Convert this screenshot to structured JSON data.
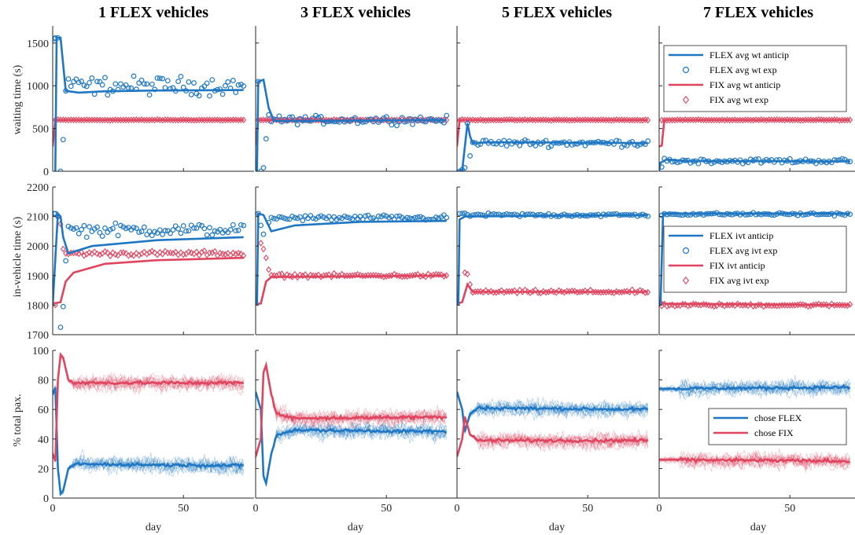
{
  "colors": {
    "flex": "#1f77c4",
    "fix": "#e0445f",
    "axis": "#262626"
  },
  "chart_data": {
    "type": "line",
    "layout": "3x4 grid of panels",
    "titles": [
      "1 FLEX vehicles",
      "3 FLEX vehicles",
      "5 FLEX vehicles",
      "7 FLEX vehicles"
    ],
    "xlabel": "day",
    "xlim": [
      0,
      75
    ],
    "xticks": [
      0,
      50
    ],
    "rows": [
      {
        "ylabel": "waiting time (s)",
        "ylim": [
          0,
          1700
        ],
        "yticks": [
          0,
          500,
          1000,
          1500
        ],
        "legend": {
          "panel": 3,
          "placement": "top-right",
          "entries": [
            {
              "label": "FLEX avg wt anticip",
              "series": "flex",
              "style": "line"
            },
            {
              "label": "FLEX avg wt exp",
              "series": "flex",
              "style": "circle"
            },
            {
              "label": "FIX avg wt anticip",
              "series": "fix",
              "style": "line"
            },
            {
              "label": "FIX avg wt exp",
              "series": "fix",
              "style": "diamond"
            }
          ]
        },
        "panels": [
          {
            "flex_anticip": [
              [
                1,
                0
              ],
              [
                1.5,
                1560
              ],
              [
                3,
                1560
              ],
              [
                5,
                940
              ],
              [
                10,
                920
              ],
              [
                20,
                935
              ],
              [
                40,
                945
              ],
              [
                73,
                950
              ]
            ],
            "flex_exp": {
              "early": [
                [
                  0.5,
                  1550
                ],
                [
                  1,
                  1560
                ],
                [
                  2,
                  1560
                ],
                [
                  3,
                  0
                ],
                [
                  4,
                  370
                ],
                [
                  5,
                  940
                ],
                [
                  6,
                  1080
                ]
              ],
              "level": 1000,
              "spread": 90
            },
            "fix_anticip": [
              [
                0,
                290
              ],
              [
                1,
                600
              ],
              [
                73,
                600
              ]
            ],
            "fix_exp": {
              "early": [],
              "level": 600,
              "spread": 4
            }
          },
          {
            "flex_anticip": [
              [
                0.5,
                0
              ],
              [
                1,
                1050
              ],
              [
                3,
                1070
              ],
              [
                5,
                740
              ],
              [
                7,
                590
              ],
              [
                20,
                590
              ],
              [
                73,
                600
              ]
            ],
            "flex_exp": {
              "early": [
                [
                  1,
                  1050
                ],
                [
                  2,
                  0
                ],
                [
                  3,
                  40
                ],
                [
                  4,
                  380
                ],
                [
                  5,
                  660
                ]
              ],
              "level": 600,
              "spread": 40
            },
            "fix_anticip": [
              [
                0,
                300
              ],
              [
                1,
                600
              ],
              [
                73,
                600
              ]
            ],
            "fix_exp": {
              "early": [],
              "level": 600,
              "spread": 4
            }
          },
          {
            "flex_anticip": [
              [
                0.5,
                0
              ],
              [
                2,
                10
              ],
              [
                4,
                560
              ],
              [
                5,
                410
              ],
              [
                6,
                330
              ],
              [
                15,
                340
              ],
              [
                73,
                330
              ]
            ],
            "flex_exp": {
              "early": [
                [
                  1,
                  0
                ],
                [
                  2,
                  20
                ],
                [
                  3,
                  40
                ],
                [
                  4,
                  560
                ],
                [
                  5,
                  180
                ]
              ],
              "level": 330,
              "spread": 35
            },
            "fix_anticip": [
              [
                0,
                290
              ],
              [
                1,
                600
              ],
              [
                73,
                600
              ]
            ],
            "fix_exp": {
              "early": [],
              "level": 600,
              "spread": 4
            }
          },
          {
            "flex_anticip": [
              [
                0,
                0
              ],
              [
                0.5,
                100
              ],
              [
                3,
                140
              ],
              [
                10,
                120
              ],
              [
                73,
                115
              ]
            ],
            "flex_exp": {
              "early": [
                [
                  1,
                  50
                ],
                [
                  2,
                  150
                ]
              ],
              "level": 120,
              "spread": 25
            },
            "fix_anticip": [
              [
                0,
                290
              ],
              [
                1,
                300
              ],
              [
                2,
                600
              ],
              [
                73,
                600
              ]
            ],
            "fix_exp": {
              "early": [],
              "level": 600,
              "spread": 4
            }
          }
        ]
      },
      {
        "ylabel": "in-vehicle time (s)",
        "ylim": [
          1700,
          2200
        ],
        "yticks": [
          1700,
          1800,
          1900,
          2000,
          2100,
          2200
        ],
        "legend": {
          "panel": 3,
          "placement": "middle-right",
          "entries": [
            {
              "label": "FLEX ivt anticip",
              "series": "flex",
              "style": "line"
            },
            {
              "label": "FLEX avg ivt exp",
              "series": "flex",
              "style": "circle"
            },
            {
              "label": "FIX ivt anticip",
              "series": "fix",
              "style": "line"
            },
            {
              "label": "FIX avg ivt exp",
              "series": "fix",
              "style": "diamond"
            }
          ]
        },
        "panels": [
          {
            "flex_anticip": [
              [
                0,
                1800
              ],
              [
                2,
                2110
              ],
              [
                3,
                2100
              ],
              [
                4,
                2030
              ],
              [
                6,
                1975
              ],
              [
                15,
                2000
              ],
              [
                40,
                2020
              ],
              [
                73,
                2030
              ]
            ],
            "flex_exp": {
              "early": [
                [
                  0.5,
                  2110
                ],
                [
                  1,
                  2110
                ],
                [
                  2,
                  2100
                ],
                [
                  3,
                  1725
                ],
                [
                  4,
                  1795
                ],
                [
                  5,
                  1950
                ]
              ],
              "level": 2055,
              "spread": 18
            },
            "fix_anticip": [
              [
                0,
                1805
              ],
              [
                3,
                1810
              ],
              [
                5,
                1880
              ],
              [
                8,
                1910
              ],
              [
                20,
                1940
              ],
              [
                40,
                1952
              ],
              [
                73,
                1960
              ]
            ],
            "fix_exp": {
              "early": [
                [
                  1,
                  1800
                ],
                [
                  2,
                  2100
                ],
                [
                  3,
                  2075
                ],
                [
                  4,
                  1990
                ]
              ],
              "level": 1975,
              "spread": 7
            }
          },
          {
            "flex_anticip": [
              [
                0.5,
                1800
              ],
              [
                1,
                2110
              ],
              [
                3,
                2105
              ],
              [
                6,
                2050
              ],
              [
                15,
                2070
              ],
              [
                40,
                2082
              ],
              [
                73,
                2085
              ]
            ],
            "flex_exp": {
              "early": [
                [
                  1,
                  2110
                ],
                [
                  2,
                  2070
                ],
                [
                  3,
                  2040
                ],
                [
                  5,
                  2080
                ]
              ],
              "level": 2095,
              "spread": 8
            },
            "fix_anticip": [
              [
                0,
                1805
              ],
              [
                2,
                1805
              ],
              [
                4,
                1880
              ],
              [
                6,
                1895
              ],
              [
                73,
                1900
              ]
            ],
            "fix_exp": {
              "early": [
                [
                  2,
                  2010
                ],
                [
                  3,
                  1990
                ],
                [
                  4,
                  1960
                ],
                [
                  5,
                  1920
                ]
              ],
              "level": 1900,
              "spread": 5
            }
          },
          {
            "flex_anticip": [
              [
                0.5,
                1800
              ],
              [
                1,
                2090
              ],
              [
                3,
                2100
              ],
              [
                73,
                2105
              ]
            ],
            "flex_exp": {
              "early": [
                [
                  1,
                  2110
                ]
              ],
              "level": 2105,
              "spread": 5
            },
            "fix_anticip": [
              [
                0,
                1805
              ],
              [
                2,
                1810
              ],
              [
                4,
                1870
              ],
              [
                6,
                1845
              ],
              [
                73,
                1845
              ]
            ],
            "fix_exp": {
              "early": [
                [
                  3,
                  1910
                ],
                [
                  4,
                  1905
                ],
                [
                  5,
                  1870
                ]
              ],
              "level": 1845,
              "spread": 5
            }
          },
          {
            "flex_anticip": [
              [
                0.5,
                1800
              ],
              [
                1.5,
                2110
              ],
              [
                73,
                2110
              ]
            ],
            "flex_exp": {
              "early": [],
              "level": 2108,
              "spread": 4
            },
            "fix_anticip": [
              [
                0,
                1805
              ],
              [
                73,
                1800
              ]
            ],
            "fix_exp": {
              "early": [
                [
                  0.5,
                  1810
                ]
              ],
              "level": 1800,
              "spread": 4
            }
          }
        ]
      },
      {
        "ylabel": "% total pax.",
        "ylim": [
          0,
          100
        ],
        "yticks": [
          0,
          20,
          40,
          60,
          80,
          100
        ],
        "legend": {
          "panel": 3,
          "placement": "middle-right",
          "entries": [
            {
              "label": "chose FLEX",
              "series": "flex",
              "style": "line"
            },
            {
              "label": "chose FIX",
              "series": "fix",
              "style": "line"
            }
          ]
        },
        "runs_per_series": 12,
        "panels": [
          {
            "flex": [
              [
                0,
                70
              ],
              [
                1,
                75
              ],
              [
                2,
                20
              ],
              [
                3,
                3
              ],
              [
                4,
                5
              ],
              [
                6,
                20
              ],
              [
                8,
                23
              ],
              [
                73,
                22
              ]
            ],
            "fix": [
              [
                0,
                30
              ],
              [
                1,
                25
              ],
              [
                2,
                80
              ],
              [
                3,
                97
              ],
              [
                4,
                95
              ],
              [
                6,
                80
              ],
              [
                8,
                78
              ],
              [
                73,
                78
              ]
            ],
            "noise": 5
          },
          {
            "flex": [
              [
                0,
                72
              ],
              [
                2,
                60
              ],
              [
                3,
                15
              ],
              [
                4,
                10
              ],
              [
                6,
                30
              ],
              [
                8,
                43
              ],
              [
                15,
                46
              ],
              [
                73,
                45
              ]
            ],
            "fix": [
              [
                0,
                28
              ],
              [
                2,
                40
              ],
              [
                3,
                85
              ],
              [
                4,
                90
              ],
              [
                6,
                70
              ],
              [
                8,
                57
              ],
              [
                15,
                54
              ],
              [
                73,
                55
              ]
            ],
            "noise": 5
          },
          {
            "flex": [
              [
                0,
                72
              ],
              [
                2,
                60
              ],
              [
                3,
                45
              ],
              [
                5,
                57
              ],
              [
                8,
                61
              ],
              [
                73,
                60
              ]
            ],
            "fix": [
              [
                0,
                28
              ],
              [
                2,
                40
              ],
              [
                3,
                55
              ],
              [
                5,
                43
              ],
              [
                8,
                39
              ],
              [
                73,
                39
              ]
            ],
            "noise": 5
          },
          {
            "flex": [
              [
                0,
                74
              ],
              [
                73,
                75
              ]
            ],
            "fix": [
              [
                0,
                26
              ],
              [
                73,
                25
              ]
            ],
            "noise": 5
          }
        ]
      }
    ]
  }
}
